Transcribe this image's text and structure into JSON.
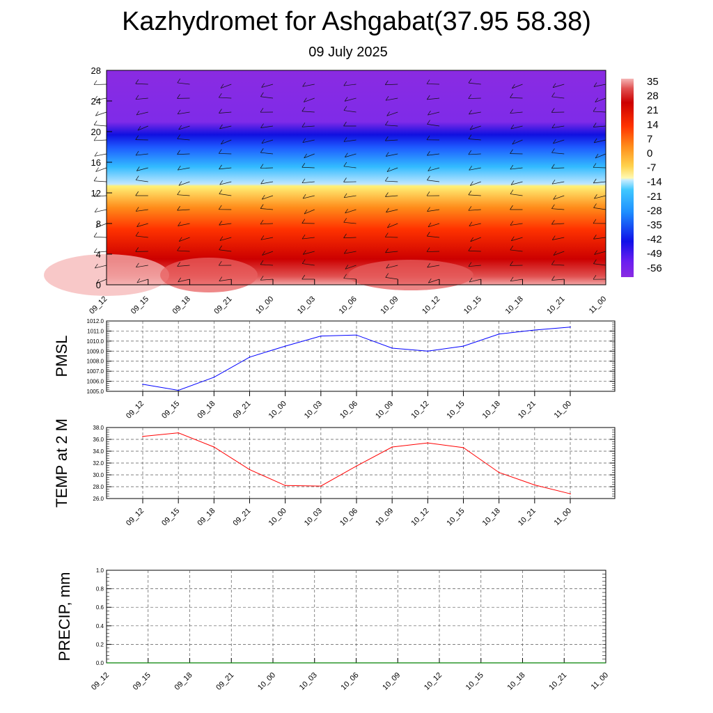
{
  "title": "Kazhydromet for Ashgabat(37.95 58.38)",
  "subtitle": "09 July 2025",
  "chart_data": [
    {
      "type": "heatmap",
      "name": "temperature-height-section",
      "x_labels": [
        "09_12",
        "09_15",
        "09_18",
        "09_21",
        "10_00",
        "10_03",
        "10_06",
        "10_09",
        "10_12",
        "10_15",
        "10_18",
        "10_21",
        "11_00"
      ],
      "y_ticks": [
        0,
        4,
        8,
        12,
        16,
        20,
        24,
        28
      ],
      "ylim": [
        0,
        28
      ],
      "colorbar_labels": [
        "35",
        "28",
        "21",
        "14",
        "7",
        "0",
        "-7",
        "-14",
        "-21",
        "-28",
        "-35",
        "-42",
        "-49",
        "-56"
      ],
      "colorbar_range": [
        -63,
        38
      ],
      "colors": [
        "#8a2be2",
        "#1e1eff",
        "#00b4ff",
        "#bfe6ff",
        "#fff6a0",
        "#ffa020",
        "#ff3000",
        "#d00000",
        "#ffb0b0"
      ]
    },
    {
      "type": "line",
      "ylabel": "PMSL",
      "x_labels": [
        "09_12",
        "09_15",
        "09_18",
        "09_21",
        "10_00",
        "10_03",
        "10_06",
        "10_09",
        "10_12",
        "10_15",
        "10_18",
        "10_21",
        "11_00"
      ],
      "values": [
        1005.7,
        1005.1,
        1006.4,
        1008.4,
        1009.5,
        1010.5,
        1010.6,
        1009.3,
        1009.0,
        1009.5,
        1010.7,
        1011.1,
        1011.4
      ],
      "ylim": [
        1005.0,
        1012.0
      ],
      "y_ticks": [
        "1005.0",
        "1006.0",
        "1007.0",
        "1008.0",
        "1009.0",
        "1010.0",
        "1011.0",
        "1012.0"
      ],
      "color": "#0000ff"
    },
    {
      "type": "line",
      "ylabel": "TEMP at 2 M",
      "x_labels": [
        "09_12",
        "09_15",
        "09_18",
        "09_21",
        "10_00",
        "10_03",
        "10_06",
        "10_09",
        "10_12",
        "10_15",
        "10_18",
        "10_21",
        "11_00"
      ],
      "values": [
        36.5,
        37.1,
        34.7,
        30.9,
        28.2,
        28.1,
        31.5,
        34.7,
        35.4,
        34.6,
        30.4,
        28.3,
        26.8
      ],
      "ylim": [
        26.0,
        38.0
      ],
      "y_ticks": [
        "26.0",
        "28.0",
        "30.0",
        "32.0",
        "34.0",
        "36.0",
        "38.0"
      ],
      "color": "#ff0000"
    },
    {
      "type": "line",
      "ylabel": "PRECIP, mm",
      "x_labels": [
        "09_12",
        "09_15",
        "09_18",
        "09_21",
        "10_00",
        "10_03",
        "10_06",
        "10_09",
        "10_12",
        "10_15",
        "10_18",
        "10_21",
        "11_00"
      ],
      "values": [
        0,
        0,
        0,
        0,
        0,
        0,
        0,
        0,
        0,
        0,
        0,
        0,
        0
      ],
      "ylim": [
        0.0,
        1.0
      ],
      "y_ticks": [
        "0.0",
        "0.2",
        "0.4",
        "0.6",
        "0.8",
        "1.0"
      ],
      "color": "#008000"
    }
  ]
}
